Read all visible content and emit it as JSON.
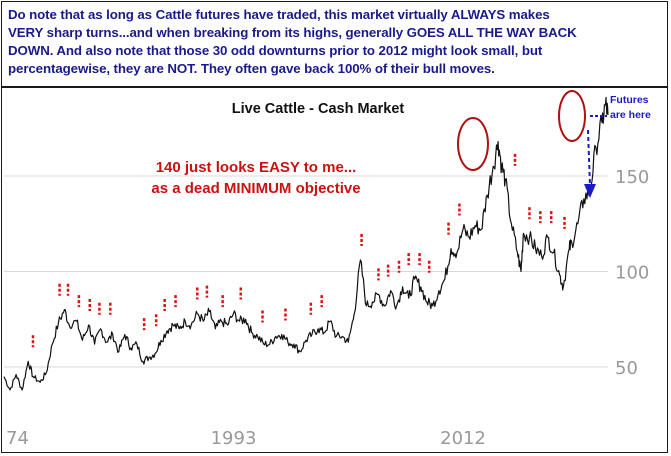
{
  "header": {
    "lines": [
      "Do note that as long as Cattle futures have traded, this market virtually ALWAYS makes",
      "VERY sharp turns...and when breaking from its highs, generally GOES ALL THE WAY BACK",
      "DOWN. And also note that those 30 odd downturns prior to 2012 might look small, but",
      "percentagewise, they are NOT. They often gave back 100% of their bull moves."
    ]
  },
  "annotations": {
    "objective_line1": "140 just looks EASY to me...",
    "objective_line2": "as a dead MINIMUM objective",
    "futures_line1": "Futures",
    "futures_line2": "are here"
  },
  "colors": {
    "header_text": "#1a1a8c",
    "annotation_red": "#cc1111",
    "marker_red": "#dd1111",
    "circle": "#b01010",
    "arrow_blue": "#1a1acc",
    "price_line": "#111111",
    "grid": "#d8d8d8",
    "axis_text": "#999999"
  },
  "chart_data": {
    "type": "line",
    "title": "Live Cattle - Cash Market",
    "xlabel": "",
    "ylabel": "",
    "x_tick_labels": [
      "74",
      "1993",
      "2012"
    ],
    "y_tick_labels": [
      "50",
      "100",
      "150"
    ],
    "ylim": [
      30,
      200
    ],
    "xlim": [
      1974,
      2024
    ],
    "grid": "horizontal",
    "series": [
      {
        "values": [
          [
            1974,
            45
          ],
          [
            1974.5,
            38
          ],
          [
            1975,
            46
          ],
          [
            1975.5,
            38
          ],
          [
            1976,
            53
          ],
          [
            1976.4,
            45
          ],
          [
            1977,
            42
          ],
          [
            1977.5,
            47
          ],
          [
            1978,
            62
          ],
          [
            1978.5,
            73
          ],
          [
            1979,
            80
          ],
          [
            1979.4,
            72
          ],
          [
            1980,
            74
          ],
          [
            1980.5,
            64
          ],
          [
            1981,
            72
          ],
          [
            1981.5,
            62
          ],
          [
            1982,
            70
          ],
          [
            1982.5,
            63
          ],
          [
            1983,
            67
          ],
          [
            1983.5,
            58
          ],
          [
            1984,
            67
          ],
          [
            1984.5,
            60
          ],
          [
            1985,
            62
          ],
          [
            1985.5,
            53
          ],
          [
            1986,
            55
          ],
          [
            1986.5,
            57
          ],
          [
            1987,
            64
          ],
          [
            1987.5,
            69
          ],
          [
            1988,
            72
          ],
          [
            1988.5,
            70
          ],
          [
            1989,
            74
          ],
          [
            1989.5,
            72
          ],
          [
            1990,
            78
          ],
          [
            1990.5,
            74
          ],
          [
            1991,
            79
          ],
          [
            1991.5,
            70
          ],
          [
            1992,
            74
          ],
          [
            1992.5,
            72
          ],
          [
            1993,
            78
          ],
          [
            1993.5,
            74
          ],
          [
            1994,
            75
          ],
          [
            1994.5,
            68
          ],
          [
            1995,
            66
          ],
          [
            1995.5,
            62
          ],
          [
            1996,
            62
          ],
          [
            1996.5,
            66
          ],
          [
            1997,
            67
          ],
          [
            1997.5,
            63
          ],
          [
            1998,
            62
          ],
          [
            1998.5,
            58
          ],
          [
            1999,
            64
          ],
          [
            1999.5,
            67
          ],
          [
            2000,
            70
          ],
          [
            2000.5,
            68
          ],
          [
            2001,
            74
          ],
          [
            2001.5,
            66
          ],
          [
            2002,
            66
          ],
          [
            2002.5,
            63
          ],
          [
            2003,
            78
          ],
          [
            2003.5,
            106
          ],
          [
            2004,
            82
          ],
          [
            2004.5,
            84
          ],
          [
            2005,
            88
          ],
          [
            2005.5,
            82
          ],
          [
            2006,
            90
          ],
          [
            2006.5,
            82
          ],
          [
            2007,
            92
          ],
          [
            2007.5,
            86
          ],
          [
            2008,
            96
          ],
          [
            2008.5,
            92
          ],
          [
            2009,
            84
          ],
          [
            2009.5,
            82
          ],
          [
            2010,
            90
          ],
          [
            2010.5,
            96
          ],
          [
            2011,
            112
          ],
          [
            2011.5,
            110
          ],
          [
            2012,
            122
          ],
          [
            2012.5,
            118
          ],
          [
            2013,
            124
          ],
          [
            2013.5,
            122
          ],
          [
            2014,
            140
          ],
          [
            2014.5,
            155
          ],
          [
            2014.9,
            168
          ],
          [
            2015.2,
            155
          ],
          [
            2015.5,
            148
          ],
          [
            2016,
            125
          ],
          [
            2016.5,
            110
          ],
          [
            2016.8,
            100
          ],
          [
            2017,
            120
          ],
          [
            2017.5,
            118
          ],
          [
            2018,
            112
          ],
          [
            2018.5,
            108
          ],
          [
            2019,
            118
          ],
          [
            2019.5,
            110
          ],
          [
            2020,
            98
          ],
          [
            2020.3,
            92
          ],
          [
            2020.8,
            112
          ],
          [
            2021,
            115
          ],
          [
            2021.5,
            125
          ],
          [
            2022,
            138
          ],
          [
            2022.5,
            142
          ],
          [
            2023,
            165
          ],
          [
            2023.5,
            178
          ],
          [
            2023.8,
            188
          ],
          [
            2024,
            182
          ]
        ]
      }
    ]
  }
}
